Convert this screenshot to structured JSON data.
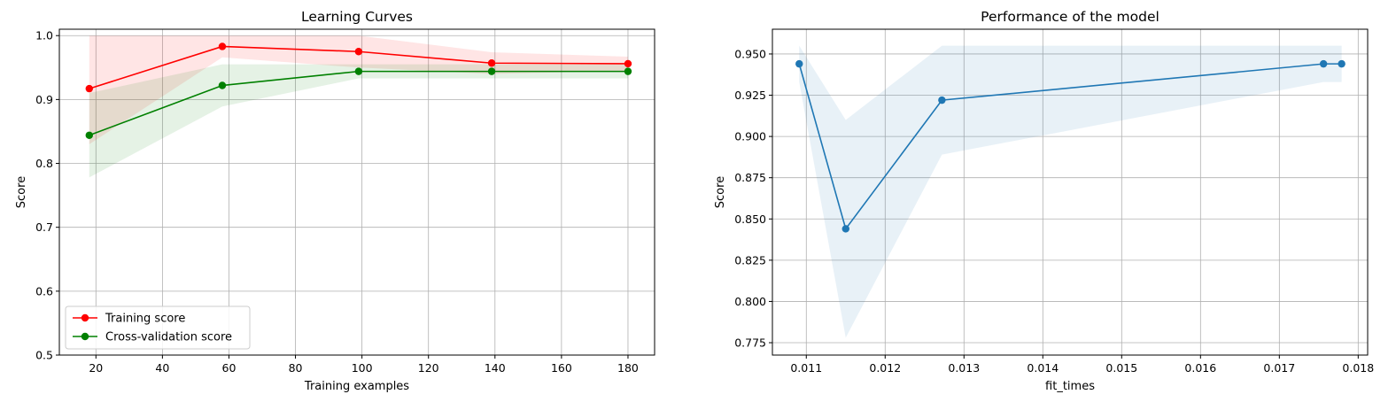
{
  "chart_data": [
    {
      "type": "line",
      "title": "Learning Curves",
      "xlabel": "Training examples",
      "ylabel": "Score",
      "xlim": [
        9,
        188
      ],
      "ylim": [
        0.5,
        1.01
      ],
      "xticks": [
        20,
        40,
        60,
        80,
        100,
        120,
        140,
        160,
        180
      ],
      "yticks": [
        0.5,
        0.6,
        0.7,
        0.8,
        0.9,
        1.0
      ],
      "ytick_labels": [
        "0.5",
        "0.6",
        "0.7",
        "0.8",
        "0.9",
        "1.0"
      ],
      "grid": true,
      "legend": "lower-left",
      "x": [
        18,
        58,
        99,
        139,
        180
      ],
      "series": [
        {
          "name": "Training score",
          "color": "#ff0000",
          "marker": "circle",
          "values": [
            0.917,
            0.983,
            0.975,
            0.957,
            0.956
          ],
          "band_lower": [
            0.83,
            0.966,
            0.95,
            0.94,
            0.945
          ],
          "band_upper": [
            1.0,
            1.0,
            1.0,
            0.974,
            0.967
          ]
        },
        {
          "name": "Cross-validation score",
          "color": "#008000",
          "marker": "circle",
          "values": [
            0.844,
            0.922,
            0.944,
            0.944,
            0.944
          ],
          "band_lower": [
            0.778,
            0.889,
            0.933,
            0.933,
            0.933
          ],
          "band_upper": [
            0.91,
            0.955,
            0.955,
            0.955,
            0.955
          ]
        }
      ]
    },
    {
      "type": "line",
      "title": "Performance of the model",
      "xlabel": "fit_times",
      "ylabel": "Score",
      "xlim": [
        0.01057,
        0.01812
      ],
      "ylim": [
        0.7675,
        0.965
      ],
      "xticks": [
        0.011,
        0.012,
        0.013,
        0.014,
        0.015,
        0.016,
        0.017,
        0.018
      ],
      "xtick_labels": [
        "0.011",
        "0.012",
        "0.013",
        "0.014",
        "0.015",
        "0.016",
        "0.017",
        "0.018"
      ],
      "yticks": [
        0.775,
        0.8,
        0.825,
        0.85,
        0.875,
        0.9,
        0.925,
        0.95
      ],
      "ytick_labels": [
        "0.775",
        "0.800",
        "0.825",
        "0.850",
        "0.875",
        "0.900",
        "0.925",
        "0.950"
      ],
      "grid": true,
      "series": [
        {
          "color": "#1f77b4",
          "marker": "circle",
          "x": [
            0.01091,
            0.0115,
            0.01272,
            0.01756,
            0.01779
          ],
          "values": [
            0.944,
            0.844,
            0.922,
            0.944,
            0.944
          ],
          "band_lower": [
            0.933,
            0.778,
            0.889,
            0.933,
            0.933
          ],
          "band_upper": [
            0.955,
            0.91,
            0.955,
            0.955,
            0.955
          ]
        }
      ]
    }
  ]
}
